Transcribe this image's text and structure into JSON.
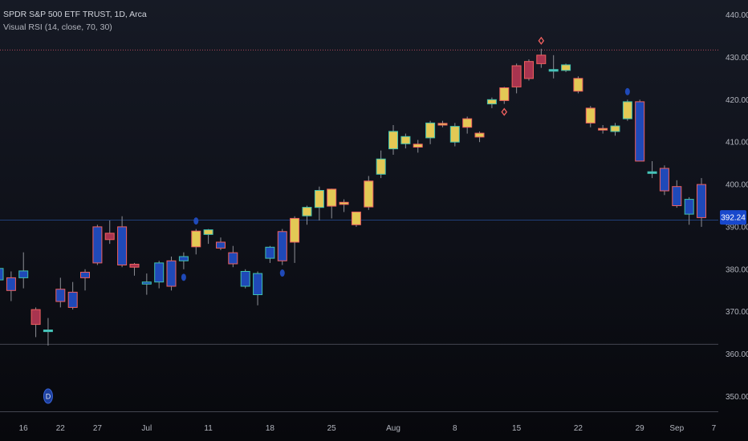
{
  "legend": {
    "title": "SPDR S&P 500 ETF TRUST, 1D, Arca",
    "indicator": "Visual RSI (14, close, 70, 30)"
  },
  "price_label": "392.24",
  "marker_label": "D",
  "colors": {
    "bull_yellow": "#e3c955",
    "bear_blue": "#1f49b8",
    "overbought_red": "#a8344f",
    "neutral_teal": "#4fc3c6",
    "wick_red": "#f0605f",
    "wick_green": "#3fc1ae",
    "grid_line": "#434651",
    "price_line": "#2962ff",
    "background": "#0e1018"
  },
  "chart_data": {
    "type": "candlestick",
    "y_axis_ticks": [
      440,
      430,
      420,
      410,
      400,
      390,
      380,
      370,
      360,
      350
    ],
    "ylim": [
      346.5,
      443.5
    ],
    "x_axis_labels": [
      {
        "label": "16",
        "index": 2
      },
      {
        "label": "22",
        "index": 5
      },
      {
        "label": "27",
        "index": 8
      },
      {
        "label": "Jul",
        "index": 12
      },
      {
        "label": "11",
        "index": 17
      },
      {
        "label": "18",
        "index": 22
      },
      {
        "label": "25",
        "index": 27
      },
      {
        "label": "Aug",
        "index": 32
      },
      {
        "label": "8",
        "index": 37
      },
      {
        "label": "15",
        "index": 42
      },
      {
        "label": "22",
        "index": 47
      },
      {
        "label": "29",
        "index": 52
      },
      {
        "label": "Sep",
        "index": 55
      },
      {
        "label": "7",
        "index": 58
      }
    ],
    "horizontal_lines": [
      {
        "value": 431.7,
        "style": "dotted-red"
      },
      {
        "value": 391.6,
        "style": "solid-blue"
      },
      {
        "value": 362.3,
        "style": "solid-gray"
      }
    ],
    "current_price": 392.24,
    "candles": [
      {
        "o": 380.2,
        "h": 381.0,
        "l": 376.5,
        "c": 377.5,
        "color": "bear_blue",
        "wick": "wick_green"
      },
      {
        "o": 378.0,
        "h": 379.5,
        "l": 372.5,
        "c": 375.0,
        "color": "bear_blue",
        "wick": "wick_red"
      },
      {
        "o": 378.0,
        "h": 384.0,
        "l": 375.5,
        "c": 379.6,
        "color": "bear_blue",
        "wick": "wick_green"
      },
      {
        "o": 370.5,
        "h": 371.0,
        "l": 364.0,
        "c": 367.0,
        "color": "overbought_red",
        "wick": "wick_red"
      },
      {
        "o": 365.3,
        "h": 368.5,
        "l": 362.0,
        "c": 365.7,
        "color": "neutral_teal",
        "wick": "wick_green"
      },
      {
        "o": 372.4,
        "h": 378.0,
        "l": 371.0,
        "c": 375.3,
        "color": "bear_blue",
        "wick": "wick_red"
      },
      {
        "o": 371.0,
        "h": 377.0,
        "l": 370.5,
        "c": 374.6,
        "color": "bear_blue",
        "wick": "wick_red"
      },
      {
        "o": 378.0,
        "h": 380.0,
        "l": 375.0,
        "c": 379.3,
        "color": "bear_blue",
        "wick": "wick_red"
      },
      {
        "o": 381.5,
        "h": 390.5,
        "l": 381.0,
        "c": 390.0,
        "color": "bear_blue",
        "wick": "wick_red"
      },
      {
        "o": 387.0,
        "h": 391.5,
        "l": 386.0,
        "c": 388.5,
        "color": "overbought_red",
        "wick": "wick_red"
      },
      {
        "o": 390.0,
        "h": 392.5,
        "l": 380.5,
        "c": 381.0,
        "color": "bear_blue",
        "wick": "wick_red"
      },
      {
        "o": 380.5,
        "h": 381.5,
        "l": 378.5,
        "c": 381.2,
        "color": "overbought_red",
        "wick": "wick_red"
      },
      {
        "o": 377.0,
        "h": 379.0,
        "l": 374.0,
        "c": 376.5,
        "color": "bear_blue",
        "wick": "wick_green"
      },
      {
        "o": 377.0,
        "h": 382.0,
        "l": 375.5,
        "c": 381.5,
        "color": "bear_blue",
        "wick": "wick_green"
      },
      {
        "o": 382.0,
        "h": 383.0,
        "l": 375.0,
        "c": 376.0,
        "color": "bear_blue",
        "wick": "wick_red"
      },
      {
        "o": 382.0,
        "h": 384.0,
        "l": 380.0,
        "c": 383.0,
        "color": "bear_blue",
        "wick": "wick_green"
      },
      {
        "o": 389.0,
        "h": 389.5,
        "l": 383.5,
        "c": 385.3,
        "color": "bull_yellow",
        "wick": "wick_red"
      },
      {
        "o": 388.2,
        "h": 389.5,
        "l": 386.0,
        "c": 389.3,
        "color": "bull_yellow",
        "wick": "wick_green"
      },
      {
        "o": 386.4,
        "h": 387.5,
        "l": 384.5,
        "c": 385.0,
        "color": "bear_blue",
        "wick": "wick_red"
      },
      {
        "o": 383.9,
        "h": 385.5,
        "l": 380.5,
        "c": 381.3,
        "color": "bear_blue",
        "wick": "wick_red"
      },
      {
        "o": 379.5,
        "h": 380.0,
        "l": 375.5,
        "c": 376.0,
        "color": "bear_blue",
        "wick": "wick_green"
      },
      {
        "o": 379.0,
        "h": 379.5,
        "l": 371.5,
        "c": 374.0,
        "color": "bear_blue",
        "wick": "wick_green"
      },
      {
        "o": 382.6,
        "h": 385.5,
        "l": 381.5,
        "c": 385.2,
        "color": "bear_blue",
        "wick": "wick_green"
      },
      {
        "o": 388.9,
        "h": 389.5,
        "l": 381.0,
        "c": 382.0,
        "color": "bear_blue",
        "wick": "wick_red"
      },
      {
        "o": 386.4,
        "h": 392.5,
        "l": 381.5,
        "c": 392.0,
        "color": "bull_yellow",
        "wick": "wick_red"
      },
      {
        "o": 392.6,
        "h": 395.0,
        "l": 390.5,
        "c": 394.6,
        "color": "bull_yellow",
        "wick": "wick_green"
      },
      {
        "o": 394.6,
        "h": 399.5,
        "l": 391.5,
        "c": 398.6,
        "color": "bull_yellow",
        "wick": "wick_green"
      },
      {
        "o": 394.9,
        "h": 399.0,
        "l": 392.0,
        "c": 398.9,
        "color": "bull_yellow",
        "wick": "wick_red"
      },
      {
        "o": 395.3,
        "h": 396.5,
        "l": 393.5,
        "c": 395.8,
        "color": "bull_yellow",
        "wick": "wick_red"
      },
      {
        "o": 390.5,
        "h": 393.0,
        "l": 390.0,
        "c": 393.5,
        "color": "bull_yellow",
        "wick": "wick_red"
      },
      {
        "o": 394.7,
        "h": 402.0,
        "l": 394.0,
        "c": 400.8,
        "color": "bull_yellow",
        "wick": "wick_red"
      },
      {
        "o": 402.4,
        "h": 408.0,
        "l": 401.5,
        "c": 406.0,
        "color": "bull_yellow",
        "wick": "wick_green"
      },
      {
        "o": 408.4,
        "h": 414.0,
        "l": 407.0,
        "c": 412.5,
        "color": "bull_yellow",
        "wick": "wick_green"
      },
      {
        "o": 409.6,
        "h": 412.0,
        "l": 408.5,
        "c": 411.3,
        "color": "bull_yellow",
        "wick": "wick_green"
      },
      {
        "o": 408.8,
        "h": 410.5,
        "l": 407.5,
        "c": 409.5,
        "color": "bull_yellow",
        "wick": "wick_red"
      },
      {
        "o": 411.0,
        "h": 415.0,
        "l": 409.5,
        "c": 414.5,
        "color": "bull_yellow",
        "wick": "wick_green"
      },
      {
        "o": 414.0,
        "h": 415.0,
        "l": 413.5,
        "c": 414.4,
        "color": "bull_yellow",
        "wick": "wick_red"
      },
      {
        "o": 410.0,
        "h": 414.5,
        "l": 409.0,
        "c": 413.7,
        "color": "bull_yellow",
        "wick": "wick_green"
      },
      {
        "o": 413.5,
        "h": 416.0,
        "l": 412.0,
        "c": 415.5,
        "color": "bull_yellow",
        "wick": "wick_red"
      },
      {
        "o": 411.2,
        "h": 412.5,
        "l": 410.0,
        "c": 412.1,
        "color": "bull_yellow",
        "wick": "wick_red"
      },
      {
        "o": 419.0,
        "h": 420.5,
        "l": 418.0,
        "c": 420.0,
        "color": "bull_yellow",
        "wick": "wick_green"
      },
      {
        "o": 419.8,
        "h": 423.0,
        "l": 419.0,
        "c": 422.8,
        "color": "bull_yellow",
        "wick": "wick_red"
      },
      {
        "o": 423.0,
        "h": 428.5,
        "l": 421.5,
        "c": 428.0,
        "color": "overbought_red",
        "wick": "wick_red"
      },
      {
        "o": 425.0,
        "h": 429.5,
        "l": 424.5,
        "c": 429.0,
        "color": "overbought_red",
        "wick": "wick_red"
      },
      {
        "o": 428.5,
        "h": 432.0,
        "l": 427.5,
        "c": 430.5,
        "color": "overbought_red",
        "wick": "wick_red"
      },
      {
        "o": 427.1,
        "h": 430.5,
        "l": 425.0,
        "c": 426.7,
        "color": "neutral_teal",
        "wick": "wick_green"
      },
      {
        "o": 426.9,
        "h": 428.5,
        "l": 426.5,
        "c": 428.2,
        "color": "bull_yellow",
        "wick": "wick_green"
      },
      {
        "o": 425.0,
        "h": 425.5,
        "l": 421.5,
        "c": 422.0,
        "color": "bull_yellow",
        "wick": "wick_red"
      },
      {
        "o": 418.0,
        "h": 418.5,
        "l": 413.5,
        "c": 414.5,
        "color": "bull_yellow",
        "wick": "wick_red"
      },
      {
        "o": 413.2,
        "h": 414.0,
        "l": 412.0,
        "c": 412.9,
        "color": "bull_yellow",
        "wick": "wick_red"
      },
      {
        "o": 412.5,
        "h": 414.5,
        "l": 411.5,
        "c": 413.8,
        "color": "bull_yellow",
        "wick": "wick_green"
      },
      {
        "o": 415.5,
        "h": 420.0,
        "l": 415.0,
        "c": 419.5,
        "color": "bull_yellow",
        "wick": "wick_green"
      },
      {
        "o": 419.5,
        "h": 420.0,
        "l": 405.5,
        "c": 405.5,
        "color": "bear_blue",
        "wick": "wick_red"
      },
      {
        "o": 402.6,
        "h": 405.5,
        "l": 401.5,
        "c": 403.0,
        "color": "neutral_teal",
        "wick": "wick_green"
      },
      {
        "o": 403.8,
        "h": 404.5,
        "l": 397.5,
        "c": 398.5,
        "color": "bear_blue",
        "wick": "wick_red"
      },
      {
        "o": 399.5,
        "h": 401.0,
        "l": 394.5,
        "c": 395.0,
        "color": "bear_blue",
        "wick": "wick_red"
      },
      {
        "o": 396.5,
        "h": 397.0,
        "l": 390.5,
        "c": 393.0,
        "color": "bear_blue",
        "wick": "wick_green"
      },
      {
        "o": 400.0,
        "h": 401.5,
        "l": 390.0,
        "c": 392.2,
        "color": "bear_blue",
        "wick": "wick_red"
      }
    ],
    "signals": [
      {
        "index": 16,
        "position": "above",
        "shape": "circle",
        "color": "bear_blue"
      },
      {
        "index": 15,
        "position": "below",
        "shape": "circle",
        "color": "bear_blue"
      },
      {
        "index": 23,
        "position": "below",
        "shape": "circle",
        "color": "bear_blue"
      },
      {
        "index": 44,
        "position": "above",
        "shape": "diamond",
        "color": "wick_red"
      },
      {
        "index": 41,
        "position": "below",
        "shape": "diamond",
        "color": "wick_red"
      },
      {
        "index": 51,
        "position": "above",
        "shape": "circle",
        "color": "bear_blue"
      },
      {
        "index": 4,
        "position": "bottom",
        "shape": "labeled-circle",
        "color": "bear_blue"
      }
    ]
  }
}
